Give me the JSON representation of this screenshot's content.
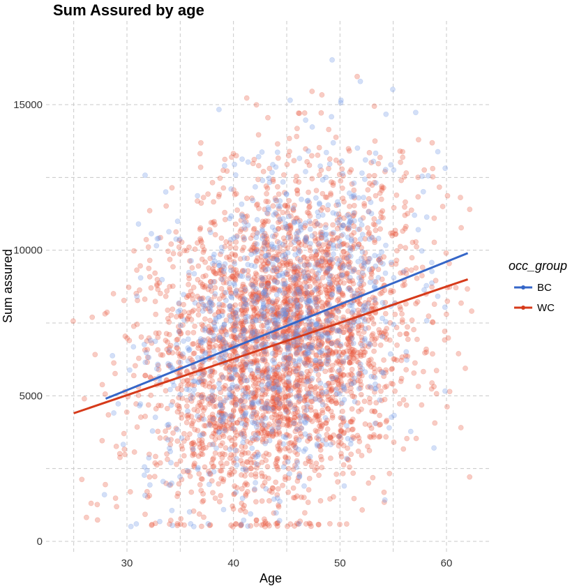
{
  "chart_data": {
    "type": "scatter",
    "title": "Sum Assured by age",
    "xlabel": "Age",
    "ylabel": "Sum assured",
    "xlim": [
      24,
      64
    ],
    "ylim": [
      0,
      17500
    ],
    "x_ticks": [
      30,
      40,
      50,
      60
    ],
    "x_tick_labels": [
      "30",
      "40",
      "50",
      "60"
    ],
    "x_minor_ticks": [
      25,
      35,
      45,
      55
    ],
    "y_ticks": [
      0,
      5000,
      10000,
      15000
    ],
    "y_tick_labels": [
      "0",
      "5000",
      "10000",
      "15000"
    ],
    "y_minor_ticks": [
      2500,
      7500,
      12500
    ],
    "grid": true,
    "legend": {
      "title": "occ_group",
      "position": "right",
      "entries": [
        {
          "label": "BC",
          "color": "#3566c8"
        },
        {
          "label": "WC",
          "color": "#d63a1a"
        }
      ]
    },
    "series": [
      {
        "name": "BC",
        "color": "#6d94e6",
        "point_opacity": 0.3,
        "age_range": [
          28,
          62
        ],
        "point_count": 1100,
        "trend_line": {
          "x": [
            28,
            62
          ],
          "y": [
            4900,
            9900
          ],
          "color": "#3566c8"
        }
      },
      {
        "name": "WC",
        "color": "#e8553a",
        "point_opacity": 0.3,
        "age_range": [
          25,
          62
        ],
        "point_count": 3200,
        "trend_line": {
          "x": [
            25,
            62
          ],
          "y": [
            4400,
            9000
          ],
          "color": "#d63a1a"
        }
      }
    ],
    "sum_assured_floor": 500
  }
}
